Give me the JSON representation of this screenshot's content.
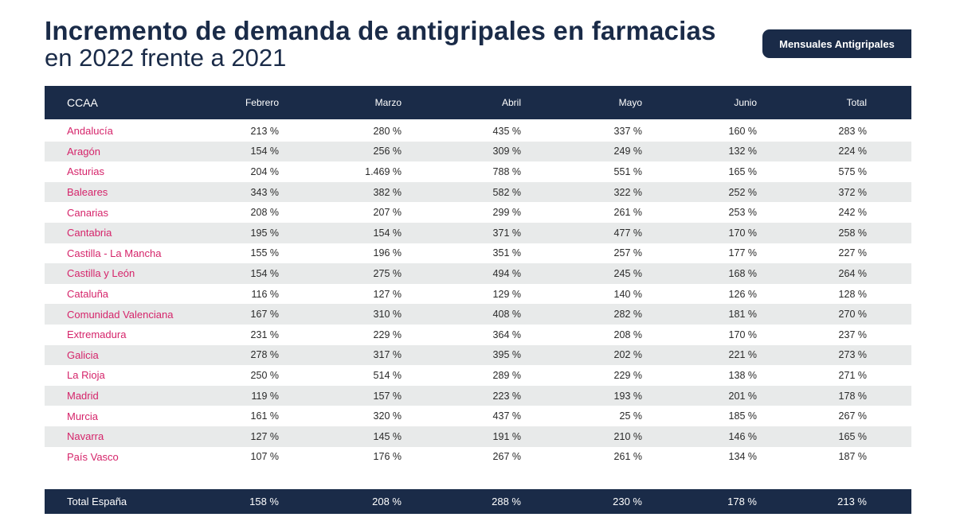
{
  "title": {
    "main": "Incremento de demanda de antigripales en farmacias",
    "sub": "en 2022 frente a 2021"
  },
  "badge": {
    "label": "Mensuales Antigripales"
  },
  "table": {
    "headers": [
      "CCAA",
      "Febrero",
      "Marzo",
      "Abril",
      "Mayo",
      "Junio",
      "Total"
    ],
    "rows": [
      {
        "name": "Andalucía",
        "values": [
          "213 %",
          "280 %",
          "435 %",
          "337 %",
          "160 %",
          "283 %"
        ]
      },
      {
        "name": "Aragón",
        "values": [
          "154 %",
          "256 %",
          "309 %",
          "249 %",
          "132 %",
          "224 %"
        ]
      },
      {
        "name": "Asturias",
        "values": [
          "204 %",
          "1.469 %",
          "788 %",
          "551 %",
          "165 %",
          "575 %"
        ]
      },
      {
        "name": "Baleares",
        "values": [
          "343 %",
          "382 %",
          "582 %",
          "322 %",
          "252 %",
          "372 %"
        ]
      },
      {
        "name": "Canarias",
        "values": [
          "208 %",
          "207 %",
          "299 %",
          "261 %",
          "253 %",
          "242 %"
        ]
      },
      {
        "name": "Cantabria",
        "values": [
          "195 %",
          "154 %",
          "371 %",
          "477 %",
          "170 %",
          "258 %"
        ]
      },
      {
        "name": "Castilla - La Mancha",
        "values": [
          "155 %",
          "196 %",
          "351 %",
          "257 %",
          "177 %",
          "227 %"
        ]
      },
      {
        "name": "Castilla y León",
        "values": [
          "154 %",
          "275 %",
          "494 %",
          "245 %",
          "168 %",
          "264 %"
        ]
      },
      {
        "name": "Cataluña",
        "values": [
          "116 %",
          "127 %",
          "129 %",
          "140 %",
          "126 %",
          "128 %"
        ]
      },
      {
        "name": "Comunidad Valenciana",
        "values": [
          "167 %",
          "310 %",
          "408 %",
          "282 %",
          "181 %",
          "270 %"
        ]
      },
      {
        "name": "Extremadura",
        "values": [
          "231 %",
          "229 %",
          "364 %",
          "208 %",
          "170 %",
          "237 %"
        ]
      },
      {
        "name": "Galicia",
        "values": [
          "278 %",
          "317 %",
          "395 %",
          "202 %",
          "221 %",
          "273 %"
        ]
      },
      {
        "name": "La Rioja",
        "values": [
          "250 %",
          "514 %",
          "289 %",
          "229 %",
          "138 %",
          "271 %"
        ]
      },
      {
        "name": "Madrid",
        "values": [
          "119 %",
          "157 %",
          "223 %",
          "193 %",
          "201 %",
          "178 %"
        ]
      },
      {
        "name": "Murcia",
        "values": [
          "161 %",
          "320 %",
          "437 %",
          "25 %",
          "185 %",
          "267 %"
        ]
      },
      {
        "name": "Navarra",
        "values": [
          "127 %",
          "145 %",
          "191 %",
          "210 %",
          "146 %",
          "165 %"
        ]
      },
      {
        "name": "País Vasco",
        "values": [
          "107 %",
          "176 %",
          "267 %",
          "261 %",
          "134 %",
          "187 %"
        ]
      }
    ],
    "total": {
      "name": "Total España",
      "values": [
        "158 %",
        "208 %",
        "288 %",
        "230 %",
        "178 %",
        "213 %"
      ]
    }
  }
}
